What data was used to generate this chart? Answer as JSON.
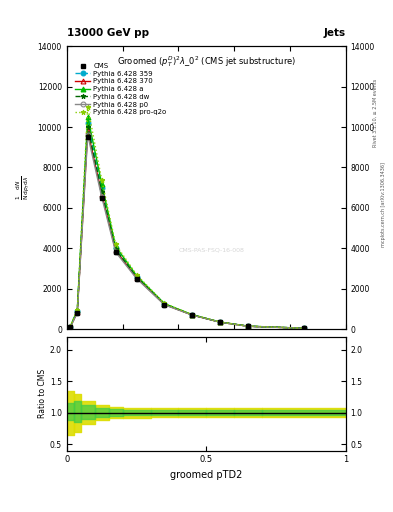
{
  "top_left_label": "13000 GeV pp",
  "top_right_label": "Jets",
  "right_label1": "Rivet 3.1.10, ≥ 2.5M events",
  "right_label2": "mcplots.cern.ch [arXiv:1306.3436]",
  "watermark": "CMS-PAS-FSQ-16-008",
  "ylabel_ratio": "Ratio to CMS",
  "xlabel": "groomed pTD2",
  "xlim": [
    0.0,
    1.0
  ],
  "ylim_main": [
    0,
    14000
  ],
  "ylim_ratio": [
    0.4,
    2.2
  ],
  "yticks_main": [
    0,
    2000,
    4000,
    6000,
    8000,
    10000,
    12000,
    14000
  ],
  "yticks_ratio": [
    0.5,
    1.0,
    1.5,
    2.0
  ],
  "x_bins": [
    0.0,
    0.025,
    0.05,
    0.1,
    0.15,
    0.2,
    0.3,
    0.4,
    0.5,
    0.6,
    0.7,
    1.0
  ],
  "cms_data": [
    100,
    800,
    9500,
    6500,
    3800,
    2500,
    1200,
    700,
    350,
    150,
    50
  ],
  "pythia_359": [
    120,
    900,
    10200,
    7000,
    4000,
    2600,
    1250,
    710,
    355,
    155,
    52
  ],
  "pythia_370": [
    110,
    850,
    9800,
    6700,
    3900,
    2550,
    1230,
    705,
    352,
    152,
    51
  ],
  "pythia_a": [
    130,
    950,
    10500,
    7200,
    4100,
    2650,
    1270,
    720,
    358,
    158,
    53
  ],
  "pythia_dw": [
    115,
    870,
    10000,
    6800,
    3950,
    2570,
    1240,
    708,
    354,
    153,
    51
  ],
  "pythia_p0": [
    105,
    820,
    9600,
    6550,
    3820,
    2510,
    1210,
    702,
    351,
    151,
    50
  ],
  "pythia_proq2o": [
    140,
    980,
    11000,
    7400,
    4200,
    2700,
    1280,
    725,
    360,
    160,
    54
  ],
  "ratio_green_upper": [
    1.15,
    1.18,
    1.12,
    1.08,
    1.06,
    1.05,
    1.04,
    1.04,
    1.04,
    1.04,
    1.04
  ],
  "ratio_green_lower": [
    0.88,
    0.85,
    0.9,
    0.93,
    0.95,
    0.96,
    0.97,
    0.97,
    0.97,
    0.97,
    0.97
  ],
  "ratio_yellow_upper": [
    1.35,
    1.3,
    1.18,
    1.12,
    1.09,
    1.08,
    1.07,
    1.07,
    1.07,
    1.07,
    1.07
  ],
  "ratio_yellow_lower": [
    0.65,
    0.7,
    0.82,
    0.88,
    0.91,
    0.92,
    0.93,
    0.93,
    0.93,
    0.93,
    0.93
  ],
  "color_359": "#00aacc",
  "color_370": "#cc0000",
  "color_a": "#00bb00",
  "color_dw": "#006600",
  "color_p0": "#888888",
  "color_proq2o": "#88cc00",
  "color_green_band": "#44cc44",
  "color_yellow_band": "#dddd00",
  "bg_color": "#ffffff"
}
